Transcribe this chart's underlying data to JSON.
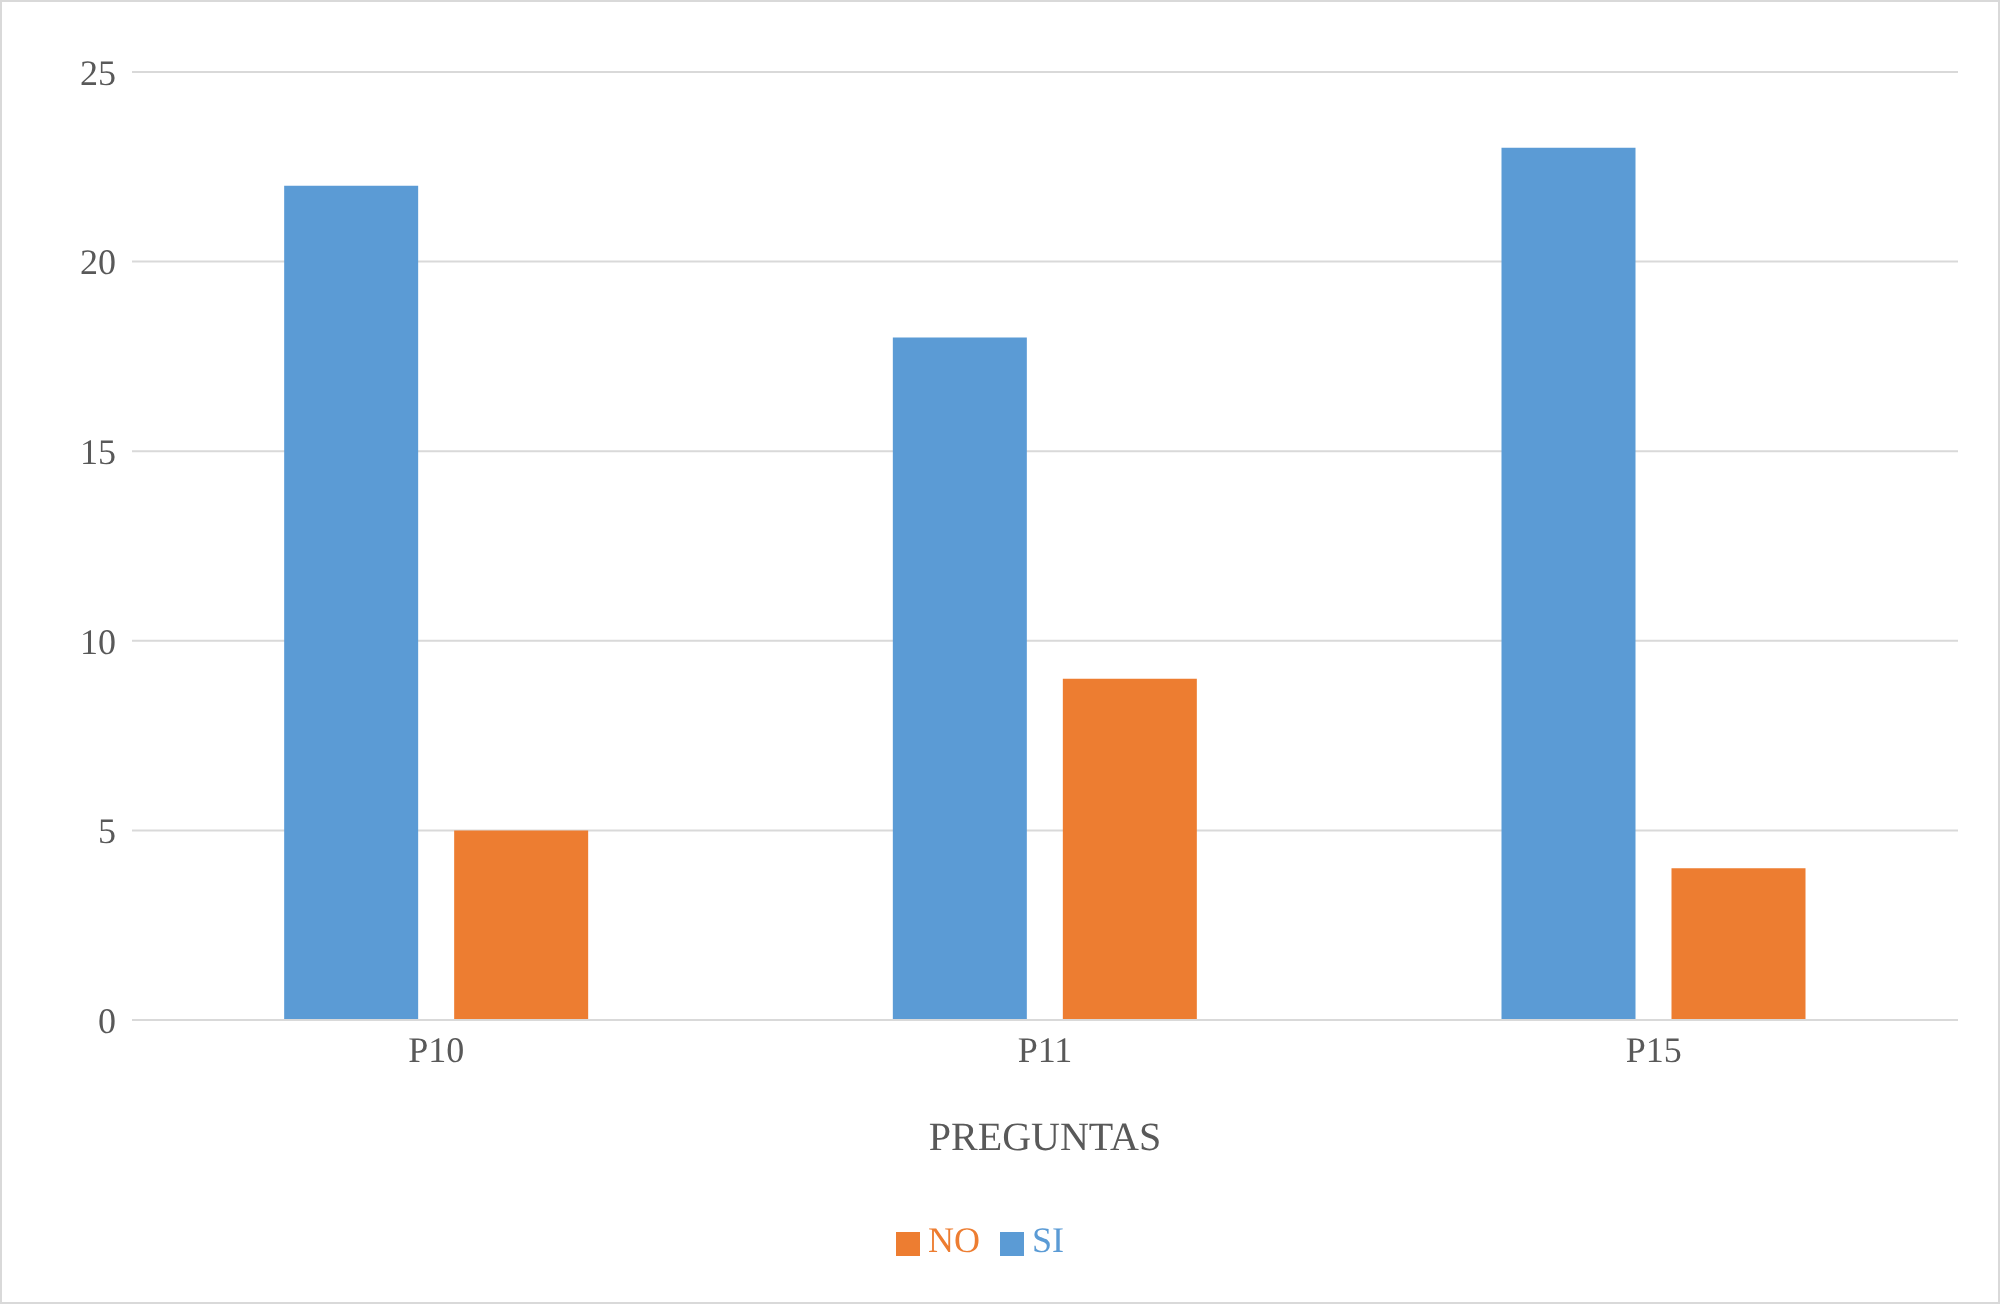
{
  "chart_data": {
    "type": "bar",
    "xlabel": "PREGUNTAS",
    "categories": [
      "P10",
      "P11",
      "P15"
    ],
    "series": [
      {
        "name": "SI",
        "color": "#5b9bd5",
        "values": [
          22,
          18,
          23
        ]
      },
      {
        "name": "NO",
        "color": "#ed7d31",
        "values": [
          5,
          9,
          4
        ]
      }
    ],
    "ylim": [
      0,
      25
    ],
    "yticks": [
      0,
      5,
      10,
      15,
      20,
      25
    ],
    "grid": "y",
    "legend": "bottom"
  }
}
